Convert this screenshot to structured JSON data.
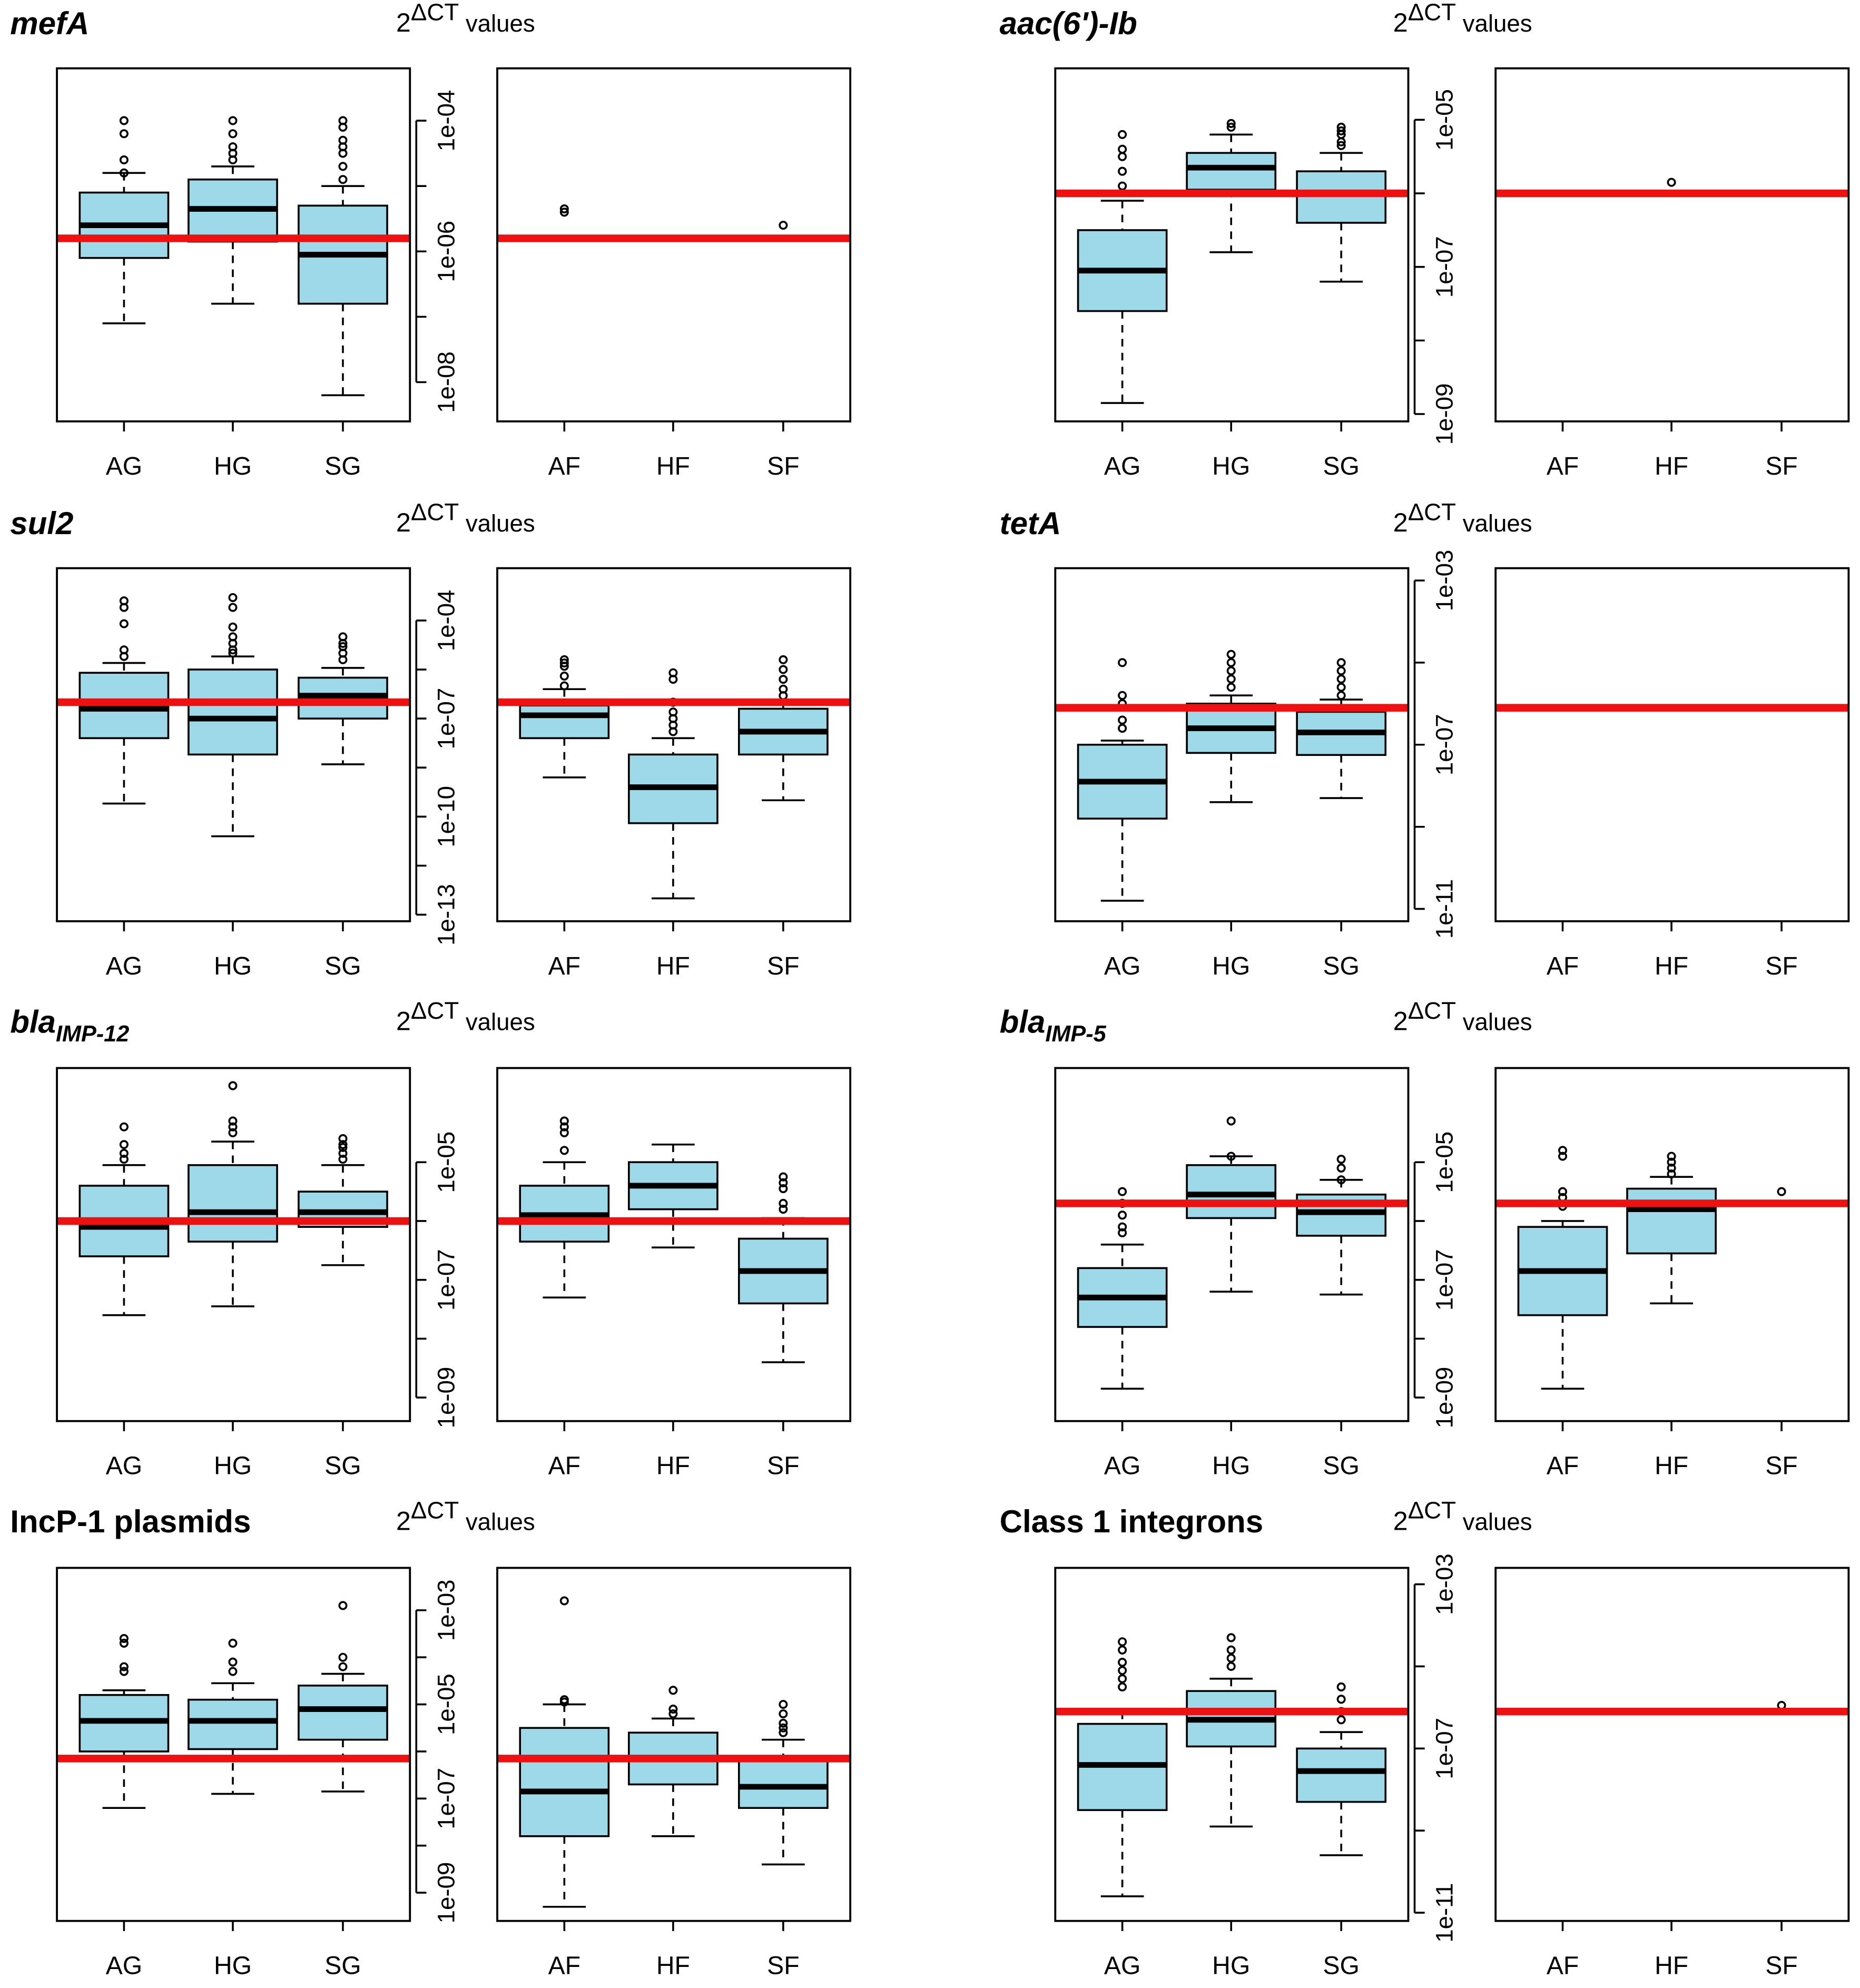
{
  "figure": {
    "ylabel_base": "2",
    "ylabel_sup": "ΔCT",
    "ylabel_suffix": " values"
  },
  "colors": {
    "box_fill": "#9ED9E9",
    "threshold": "#EE1111",
    "stroke": "#000000",
    "background": "#FFFFFF"
  },
  "chart_data": [
    {
      "type": "box",
      "title": "mefA",
      "title_style": "italic",
      "y_scale": "log10",
      "ylim_log10": [
        -8.6,
        -3.2
      ],
      "major_ticks_log10": [
        -8,
        -6,
        -4
      ],
      "minor_ticks_log10": [
        -7,
        -5
      ],
      "tick_labels": [
        "1e-08",
        "1e-06",
        "1e-04"
      ],
      "threshold_log10": -5.8,
      "left": {
        "categories": [
          "AG",
          "HG",
          "SG"
        ],
        "boxes": [
          {
            "low": -7.1,
            "q1": -6.1,
            "median": -5.6,
            "q3": -5.1,
            "high": -4.8,
            "outliers": [
              -4.0,
              -4.2,
              -4.6,
              -4.8
            ]
          },
          {
            "low": -6.8,
            "q1": -5.85,
            "median": -5.35,
            "q3": -4.9,
            "high": -4.7,
            "outliers": [
              -4.0,
              -4.2,
              -4.4,
              -4.5,
              -4.6
            ]
          },
          {
            "low": -8.2,
            "q1": -6.8,
            "median": -6.05,
            "q3": -5.3,
            "high": -5.0,
            "outliers": [
              -4.0,
              -4.1,
              -4.3,
              -4.4,
              -4.5,
              -4.7,
              -4.9
            ]
          }
        ]
      },
      "right": {
        "categories": [
          "AF",
          "HF",
          "SF"
        ],
        "boxes": [
          {
            "points": [
              -5.35,
              -5.4
            ]
          },
          null,
          {
            "points": [
              -5.6
            ]
          }
        ]
      }
    },
    {
      "type": "box",
      "title": "aac(6')-Ib",
      "title_style": "italic",
      "y_scale": "log10",
      "ylim_log10": [
        -9.1,
        -4.3
      ],
      "major_ticks_log10": [
        -9,
        -7,
        -5
      ],
      "minor_ticks_log10": [
        -8,
        -6
      ],
      "tick_labels": [
        "1e-09",
        "1e-07",
        "1e-05"
      ],
      "threshold_log10": -6.0,
      "left": {
        "categories": [
          "AG",
          "HG",
          "SG"
        ],
        "boxes": [
          {
            "low": -8.85,
            "q1": -7.6,
            "median": -7.05,
            "q3": -6.5,
            "high": -6.1,
            "outliers": [
              -5.2,
              -5.4,
              -5.5,
              -5.7,
              -5.9
            ]
          },
          {
            "low": -6.8,
            "q1": -5.95,
            "median": -5.65,
            "q3": -5.45,
            "high": -5.2,
            "outliers": [
              -5.05,
              -5.1
            ]
          },
          {
            "low": -7.2,
            "q1": -6.4,
            "median": -6.0,
            "q3": -5.7,
            "high": -5.45,
            "outliers": [
              -5.1,
              -5.15,
              -5.2,
              -5.3,
              -5.35
            ]
          }
        ]
      },
      "right": {
        "categories": [
          "AF",
          "HF",
          "SF"
        ],
        "boxes": [
          null,
          {
            "points": [
              -5.85
            ]
          },
          null
        ]
      }
    },
    {
      "type": "box",
      "title": "sul2",
      "title_style": "italic",
      "y_scale": "log10",
      "ylim_log10": [
        -13.2,
        -2.4
      ],
      "major_ticks_log10": [
        -13,
        -10,
        -7,
        -4
      ],
      "minor_ticks_log10": [
        -11.5,
        -8.5,
        -5.5
      ],
      "tick_labels": [
        "1e-13",
        "1e-10",
        "1e-07",
        "1e-04"
      ],
      "threshold_log10": -6.5,
      "left": {
        "categories": [
          "AG",
          "HG",
          "SG"
        ],
        "boxes": [
          {
            "low": -9.6,
            "q1": -7.6,
            "median": -6.7,
            "q3": -5.6,
            "high": -5.3,
            "outliers": [
              -3.4,
              -3.6,
              -4.1,
              -4.9,
              -5.1
            ]
          },
          {
            "low": -10.6,
            "q1": -8.1,
            "median": -7.0,
            "q3": -5.5,
            "high": -5.1,
            "outliers": [
              -3.3,
              -3.6,
              -4.2,
              -4.5,
              -4.7,
              -4.9,
              -5.0
            ]
          },
          {
            "low": -8.4,
            "q1": -7.0,
            "median": -6.3,
            "q3": -5.75,
            "high": -5.45,
            "outliers": [
              -4.5,
              -4.7,
              -4.8,
              -5.0,
              -5.2
            ]
          }
        ]
      },
      "right": {
        "categories": [
          "AF",
          "HF",
          "SF"
        ],
        "boxes": [
          {
            "low": -8.8,
            "q1": -7.6,
            "median": -6.9,
            "q3": -6.6,
            "high": -6.1,
            "outliers": [
              -5.2,
              -5.3,
              -5.4,
              -5.7,
              -6.0
            ]
          },
          {
            "low": -12.5,
            "q1": -10.2,
            "median": -9.1,
            "q3": -8.1,
            "high": -7.6,
            "outliers": [
              -5.6,
              -5.8,
              -6.5,
              -6.8,
              -7.0,
              -7.2,
              -7.4
            ]
          },
          {
            "low": -9.5,
            "q1": -8.1,
            "median": -7.4,
            "q3": -6.7,
            "high": -6.5,
            "outliers": [
              -5.2,
              -5.5,
              -5.8,
              -6.1,
              -6.3
            ]
          }
        ]
      }
    },
    {
      "type": "box",
      "title": "tetA",
      "title_style": "italic",
      "y_scale": "log10",
      "ylim_log10": [
        -11.3,
        -2.7
      ],
      "major_ticks_log10": [
        -11,
        -7,
        -3
      ],
      "minor_ticks_log10": [
        -9,
        -5
      ],
      "tick_labels": [
        "1e-11",
        "1e-07",
        "1e-03"
      ],
      "threshold_log10": -6.1,
      "left": {
        "categories": [
          "AG",
          "HG",
          "SG"
        ],
        "boxes": [
          {
            "low": -10.8,
            "q1": -8.8,
            "median": -7.9,
            "q3": -7.0,
            "high": -6.9,
            "outliers": [
              -5.0,
              -5.8,
              -6.0,
              -6.4,
              -6.6
            ]
          },
          {
            "low": -8.4,
            "q1": -7.2,
            "median": -6.6,
            "q3": -6.0,
            "high": -5.8,
            "outliers": [
              -4.8,
              -5.0,
              -5.2,
              -5.4,
              -5.6
            ]
          },
          {
            "low": -8.3,
            "q1": -7.25,
            "median": -6.7,
            "q3": -6.2,
            "high": -5.9,
            "outliers": [
              -5.0,
              -5.2,
              -5.4,
              -5.6,
              -5.8
            ]
          }
        ]
      },
      "right": {
        "categories": [
          "AF",
          "HF",
          "SF"
        ],
        "boxes": [
          null,
          null,
          null
        ]
      }
    },
    {
      "type": "box",
      "title_main": "bla",
      "title_sub": "IMP-12",
      "title_style": "italic",
      "y_scale": "log10",
      "ylim_log10": [
        -9.4,
        -3.4
      ],
      "major_ticks_log10": [
        -9,
        -7,
        -5
      ],
      "minor_ticks_log10": [
        -8,
        -6
      ],
      "tick_labels": [
        "1e-09",
        "1e-07",
        "1e-05"
      ],
      "threshold_log10": -6.0,
      "left": {
        "categories": [
          "AG",
          "HG",
          "SG"
        ],
        "boxes": [
          {
            "low": -7.6,
            "q1": -6.6,
            "median": -6.1,
            "q3": -5.4,
            "high": -5.05,
            "outliers": [
              -4.4,
              -4.7,
              -4.85,
              -4.95
            ]
          },
          {
            "low": -7.45,
            "q1": -6.35,
            "median": -5.85,
            "q3": -5.05,
            "high": -4.65,
            "outliers": [
              -3.7,
              -4.3,
              -4.4,
              -4.5
            ]
          },
          {
            "low": -6.75,
            "q1": -6.1,
            "median": -5.85,
            "q3": -5.5,
            "high": -5.05,
            "outliers": [
              -4.6,
              -4.7,
              -4.75,
              -4.85,
              -4.95
            ]
          }
        ]
      },
      "right": {
        "categories": [
          "AF",
          "HF",
          "SF"
        ],
        "boxes": [
          {
            "low": -7.3,
            "q1": -6.35,
            "median": -5.9,
            "q3": -5.4,
            "high": -5.0,
            "outliers": [
              -4.3,
              -4.4,
              -4.5,
              -4.8
            ]
          },
          {
            "low": -6.45,
            "q1": -5.8,
            "median": -5.4,
            "q3": -5.0,
            "high": -4.7,
            "outliers": []
          },
          {
            "low": -8.4,
            "q1": -7.4,
            "median": -6.85,
            "q3": -6.3,
            "high": -5.95,
            "outliers": [
              -5.25,
              -5.35,
              -5.45,
              -5.7,
              -5.8
            ]
          }
        ]
      }
    },
    {
      "type": "box",
      "title_main": "bla",
      "title_sub": "IMP-5",
      "title_style": "italic",
      "y_scale": "log10",
      "ylim_log10": [
        -9.4,
        -3.4
      ],
      "major_ticks_log10": [
        -9,
        -7,
        -5
      ],
      "minor_ticks_log10": [
        -8,
        -6
      ],
      "tick_labels": [
        "1e-09",
        "1e-07",
        "1e-05"
      ],
      "threshold_log10": -5.7,
      "left": {
        "categories": [
          "AG",
          "HG",
          "SG"
        ],
        "boxes": [
          {
            "low": -8.85,
            "q1": -7.8,
            "median": -7.3,
            "q3": -6.8,
            "high": -6.4,
            "outliers": [
              -5.5,
              -5.7,
              -5.9,
              -6.1,
              -6.2
            ]
          },
          {
            "low": -7.2,
            "q1": -5.95,
            "median": -5.55,
            "q3": -5.05,
            "high": -4.9,
            "outliers": [
              -4.3,
              -4.9
            ]
          },
          {
            "low": -7.25,
            "q1": -6.25,
            "median": -5.85,
            "q3": -5.55,
            "high": -5.3,
            "outliers": [
              -4.95,
              -5.1,
              -5.3
            ]
          }
        ]
      },
      "right": {
        "categories": [
          "AF",
          "HF",
          "SF"
        ],
        "boxes": [
          {
            "low": -8.85,
            "q1": -7.6,
            "median": -6.85,
            "q3": -6.1,
            "high": -6.0,
            "outliers": [
              -4.8,
              -4.9,
              -5.5,
              -5.6,
              -5.75
            ]
          },
          {
            "low": -7.4,
            "q1": -6.55,
            "median": -5.8,
            "q3": -5.45,
            "high": -5.25,
            "outliers": [
              -4.9,
              -5.0,
              -5.1,
              -5.2
            ]
          },
          {
            "points": [
              -5.5
            ]
          }
        ]
      }
    },
    {
      "type": "box",
      "title": "IncP-1 plasmids",
      "title_style": "bold",
      "y_scale": "log10",
      "ylim_log10": [
        -9.6,
        -2.1
      ],
      "major_ticks_log10": [
        -9,
        -7,
        -5,
        -3
      ],
      "minor_ticks_log10": [
        -8,
        -6,
        -4
      ],
      "tick_labels": [
        "1e-09",
        "1e-07",
        "1e-05",
        "1e-03"
      ],
      "threshold_log10": -6.15,
      "left": {
        "categories": [
          "AG",
          "HG",
          "SG"
        ],
        "boxes": [
          {
            "low": -7.2,
            "q1": -6.0,
            "median": -5.35,
            "q3": -4.8,
            "high": -4.7,
            "outliers": [
              -3.6,
              -3.7,
              -4.2,
              -4.3
            ]
          },
          {
            "low": -6.9,
            "q1": -5.95,
            "median": -5.35,
            "q3": -4.9,
            "high": -4.55,
            "outliers": [
              -3.7,
              -4.1,
              -4.3
            ]
          },
          {
            "low": -6.85,
            "q1": -5.75,
            "median": -5.1,
            "q3": -4.6,
            "high": -4.35,
            "outliers": [
              -2.9,
              -4.0,
              -4.2
            ]
          }
        ]
      },
      "right": {
        "categories": [
          "AF",
          "HF",
          "SF"
        ],
        "boxes": [
          {
            "low": -9.3,
            "q1": -7.8,
            "median": -6.85,
            "q3": -5.5,
            "high": -5.0,
            "outliers": [
              -2.8,
              -4.9,
              -4.95
            ]
          },
          {
            "low": -7.8,
            "q1": -6.7,
            "median": -6.15,
            "q3": -5.6,
            "high": -5.3,
            "outliers": [
              -4.7,
              -5.1,
              -5.2
            ]
          },
          {
            "low": -8.4,
            "q1": -7.2,
            "median": -6.75,
            "q3": -6.15,
            "high": -5.75,
            "outliers": [
              -5.0,
              -5.2,
              -5.4,
              -5.5,
              -5.6
            ]
          }
        ]
      }
    },
    {
      "type": "box",
      "title": "Class 1 integrons",
      "title_style": "bold",
      "y_scale": "log10",
      "ylim_log10": [
        -11.2,
        -2.6
      ],
      "major_ticks_log10": [
        -11,
        -7,
        -3
      ],
      "minor_ticks_log10": [
        -9,
        -5
      ],
      "tick_labels": [
        "1e-11",
        "1e-07",
        "1e-03"
      ],
      "threshold_log10": -6.1,
      "left": {
        "categories": [
          "AG",
          "HG",
          "SG"
        ],
        "boxes": [
          {
            "low": -10.6,
            "q1": -8.5,
            "median": -7.4,
            "q3": -6.4,
            "high": -6.1,
            "outliers": [
              -4.4,
              -4.6,
              -4.9,
              -5.1,
              -5.3,
              -5.5
            ]
          },
          {
            "low": -8.9,
            "q1": -6.95,
            "median": -6.3,
            "q3": -5.6,
            "high": -5.3,
            "outliers": [
              -4.3,
              -4.6,
              -4.8,
              -5.0
            ]
          },
          {
            "low": -9.6,
            "q1": -8.3,
            "median": -7.55,
            "q3": -7.0,
            "high": -6.6,
            "outliers": [
              -5.5,
              -5.8,
              -6.1,
              -6.3
            ]
          }
        ]
      },
      "right": {
        "categories": [
          "AF",
          "HF",
          "SF"
        ],
        "boxes": [
          null,
          null,
          {
            "points": [
              -5.95
            ]
          }
        ]
      }
    }
  ]
}
